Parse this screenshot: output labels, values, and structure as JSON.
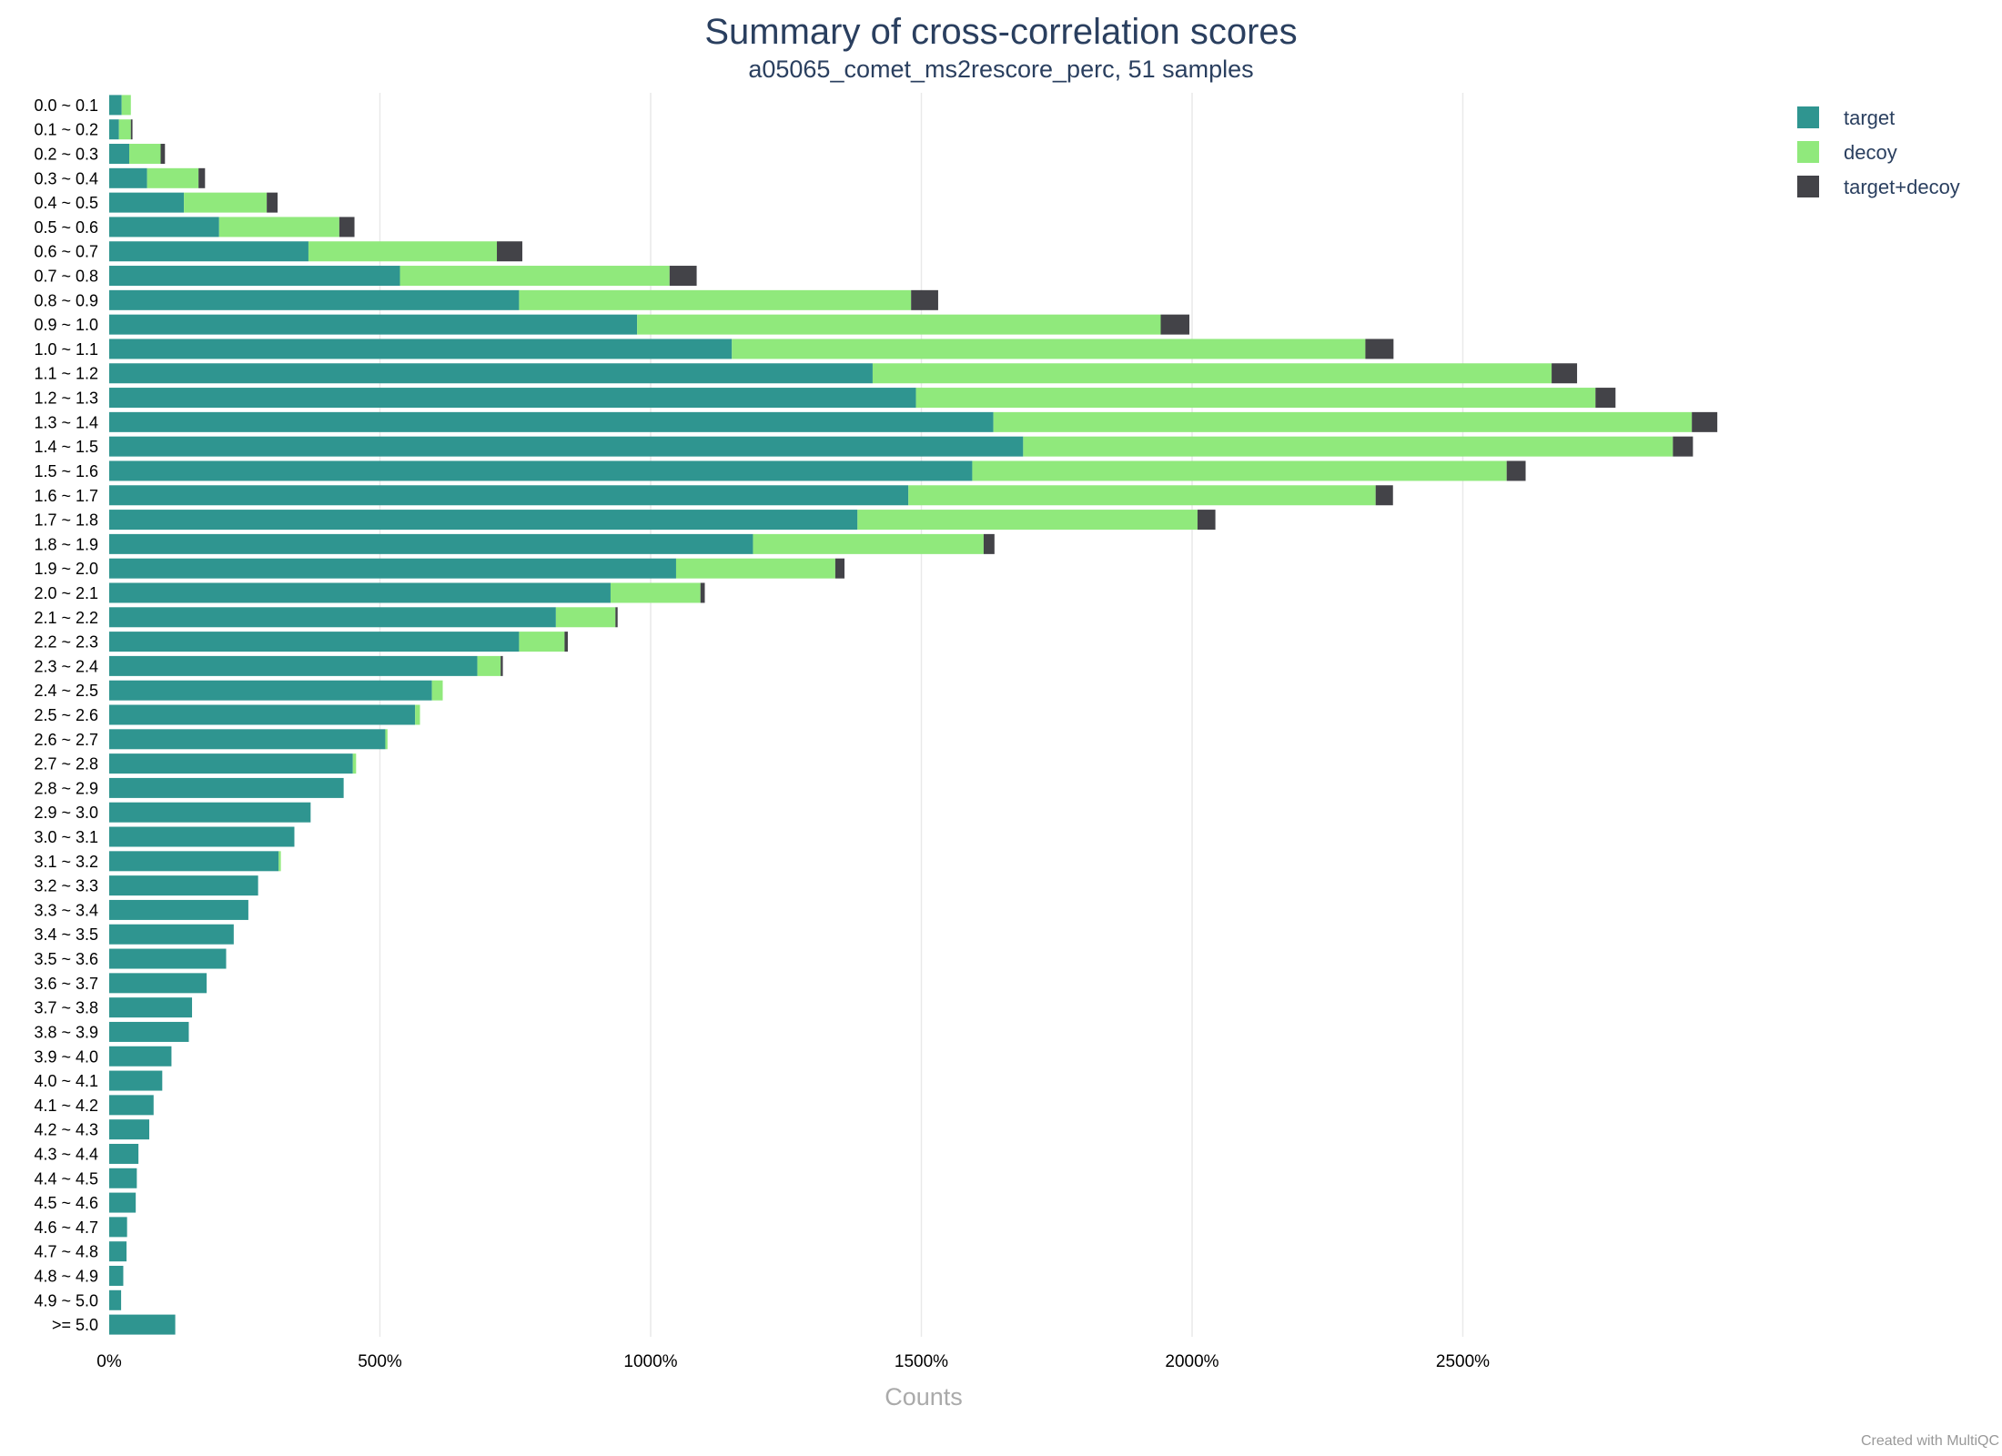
{
  "footer": {
    "credit": "Created with MultiQC"
  },
  "chart_data": {
    "type": "bar",
    "orientation": "horizontal",
    "stacked": true,
    "title": "Summary of cross-correlation scores",
    "subtitle": "a05065_comet_ms2rescore_perc, 51 samples",
    "xlabel": "Counts",
    "ylabel": "",
    "xlim": [
      0,
      3000
    ],
    "x_ticks": [
      0,
      500,
      1000,
      1500,
      2000,
      2500
    ],
    "x_tick_suffix": "%",
    "grid": true,
    "legend_position": "top-right",
    "categories": [
      "0.0 ~ 0.1",
      "0.1 ~ 0.2",
      "0.2 ~ 0.3",
      "0.3 ~ 0.4",
      "0.4 ~ 0.5",
      "0.5 ~ 0.6",
      "0.6 ~ 0.7",
      "0.7 ~ 0.8",
      "0.8 ~ 0.9",
      "0.9 ~ 1.0",
      "1.0 ~ 1.1",
      "1.1 ~ 1.2",
      "1.2 ~ 1.3",
      "1.3 ~ 1.4",
      "1.4 ~ 1.5",
      "1.5 ~ 1.6",
      "1.6 ~ 1.7",
      "1.7 ~ 1.8",
      "1.8 ~ 1.9",
      "1.9 ~ 2.0",
      "2.0 ~ 2.1",
      "2.1 ~ 2.2",
      "2.2 ~ 2.3",
      "2.3 ~ 2.4",
      "2.4 ~ 2.5",
      "2.5 ~ 2.6",
      "2.6 ~ 2.7",
      "2.7 ~ 2.8",
      "2.8 ~ 2.9",
      "2.9 ~ 3.0",
      "3.0 ~ 3.1",
      "3.1 ~ 3.2",
      "3.2 ~ 3.3",
      "3.3 ~ 3.4",
      "3.4 ~ 3.5",
      "3.5 ~ 3.6",
      "3.6 ~ 3.7",
      "3.7 ~ 3.8",
      "3.8 ~ 3.9",
      "3.9 ~ 4.0",
      "4.0 ~ 4.1",
      "4.1 ~ 4.2",
      "4.2 ~ 4.3",
      "4.3 ~ 4.4",
      "4.4 ~ 4.5",
      "4.5 ~ 4.6",
      "4.6 ~ 4.7",
      "4.7 ~ 4.8",
      "4.8 ~ 4.9",
      "4.9 ~ 5.0",
      ">= 5.0"
    ],
    "series": [
      {
        "name": "target",
        "color": "#2f9590",
        "values": [
          23,
          18,
          37,
          70,
          138,
          203,
          368,
          537,
          757,
          975,
          1150,
          1410,
          1490,
          1633,
          1688,
          1594,
          1476,
          1382,
          1189,
          1047,
          926,
          825,
          757,
          680,
          596,
          565,
          510,
          450,
          433,
          372,
          342,
          313,
          275,
          257,
          230,
          216,
          180,
          153,
          147,
          115,
          98,
          82,
          74,
          54,
          51,
          49,
          33,
          32,
          26,
          22,
          122
        ]
      },
      {
        "name": "decoy",
        "color": "#90e97c",
        "values": [
          17,
          22,
          58,
          95,
          153,
          222,
          348,
          498,
          724,
          967,
          1170,
          1254,
          1255,
          1290,
          1200,
          987,
          863,
          628,
          426,
          294,
          166,
          110,
          84,
          43,
          20,
          9,
          4,
          6,
          0,
          0,
          0,
          4,
          0,
          0,
          0,
          0,
          0,
          0,
          0,
          0,
          0,
          0,
          0,
          0,
          0,
          0,
          0,
          0,
          0,
          0,
          0
        ]
      },
      {
        "name": "target+decoy",
        "color": "#434348",
        "values": [
          0,
          3,
          8,
          12,
          20,
          28,
          47,
          50,
          50,
          53,
          52,
          47,
          37,
          47,
          37,
          35,
          32,
          33,
          20,
          17,
          8,
          4,
          6,
          4,
          0,
          0,
          0,
          0,
          0,
          0,
          0,
          0,
          0,
          0,
          0,
          0,
          0,
          0,
          0,
          0,
          0,
          0,
          0,
          0,
          0,
          0,
          0,
          0,
          0,
          0,
          0
        ]
      }
    ]
  }
}
